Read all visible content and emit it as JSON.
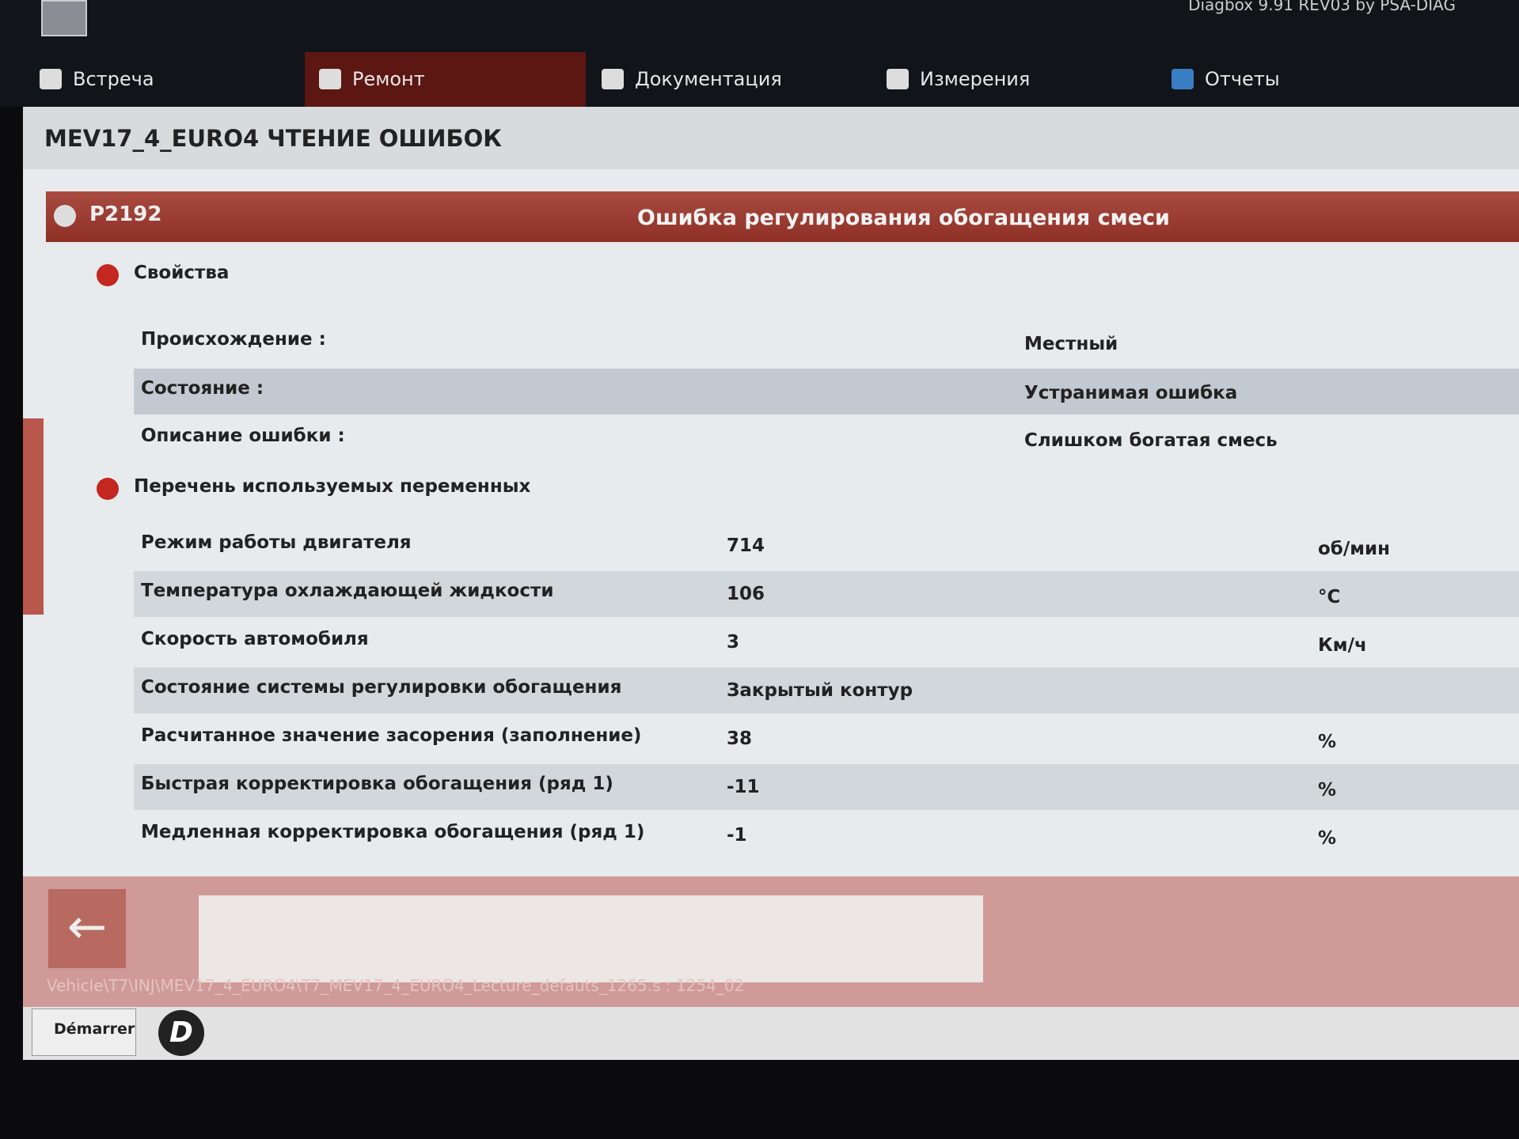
{
  "app_title": "Diagbox 9.91 REV03 by PSA-DIAG",
  "nav": [
    "Встреча",
    "Ремонт",
    "Документация",
    "Измерения",
    "Отчеты"
  ],
  "page_title": "MEV17_4_EURO4 ЧТЕНИЕ ОШИБОК",
  "fault": {
    "code": "P2192",
    "description": "Ошибка регулирования обогащения смеси"
  },
  "properties": {
    "heading": "Свойства",
    "rows": [
      [
        "Происхождение :",
        "Местный"
      ],
      [
        "Состояние :",
        "Устранимая ошибка"
      ],
      [
        "Описание ошибки :",
        "Слишком богатая смесь"
      ]
    ]
  },
  "variables": {
    "heading": "Перечень используемых переменных",
    "rows": [
      [
        "Режим работы двигателя",
        "714",
        "об/мин"
      ],
      [
        "Температура охлаждающей жидкости",
        "106",
        "°C"
      ],
      [
        "Скорость автомобиля",
        "3",
        "Км/ч"
      ],
      [
        "Состояние системы регулировки обогащения",
        "Закрытый контур",
        null
      ],
      [
        "Расчитанное значение засорения (заполнение)",
        "38",
        "%"
      ],
      [
        "Быстрая корректировка обогащения (ряд 1)",
        "-11",
        "%"
      ],
      [
        "Медленная корректировка обогащения (ряд 1)",
        "-1",
        "%"
      ]
    ]
  },
  "footer_path": "Vehicle\\T7\\INJ\\MEV17_4_EURO4\\T7_MEV17_4_EURO4_Lecture_defauts_1265.s : 1254_02",
  "taskbar": {
    "start": "Démarrer",
    "app_icon": "D"
  }
}
